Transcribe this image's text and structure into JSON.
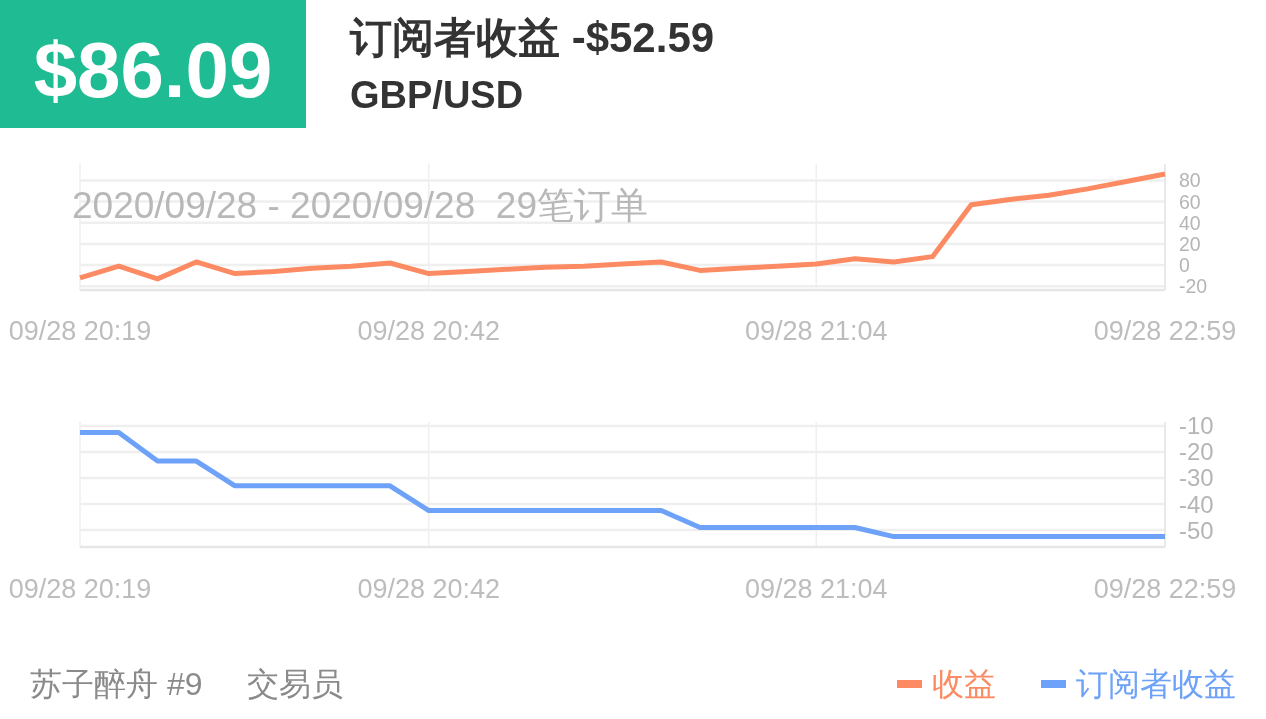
{
  "chart_data": [
    {
      "type": "line",
      "title": "订阅者收益 -$52.59",
      "subtitle": "GBP/USD",
      "annotations": [
        "$86.09",
        "2020/09/28 - 2020/09/28  29笔订单"
      ],
      "categories": [
        "09/28 20:19",
        null,
        null,
        null,
        null,
        null,
        null,
        null,
        null,
        "09/28 20:42",
        null,
        null,
        null,
        null,
        null,
        null,
        null,
        null,
        null,
        "09/28 21:04",
        null,
        null,
        null,
        null,
        null,
        null,
        null,
        null,
        "09/28 22:59"
      ],
      "ylim": [
        -23.5,
        95.5
      ],
      "yticks": [
        -20,
        0,
        20,
        40,
        60,
        80
      ],
      "grid": true,
      "legend": "bottom right",
      "series": [
        {
          "name": "收益",
          "color": "#fc8b63",
          "values": [
            -12,
            -1,
            -13,
            3,
            -8,
            -6,
            -3,
            -1,
            2,
            -8,
            -6,
            -4,
            -2,
            -1,
            1,
            3,
            -5,
            -3,
            -1,
            1,
            6,
            3,
            8,
            57,
            62,
            66,
            72,
            79,
            86
          ]
        }
      ]
    },
    {
      "type": "line",
      "annotations": [
        "苏子醉舟 #9     交易员"
      ],
      "categories": [
        "09/28 20:19",
        null,
        null,
        null,
        null,
        null,
        null,
        null,
        null,
        "09/28 20:42",
        null,
        null,
        null,
        null,
        null,
        null,
        null,
        null,
        null,
        "09/28 21:04",
        null,
        null,
        null,
        null,
        null,
        null,
        null,
        null,
        "09/28 22:59"
      ],
      "ylim": [
        -56.5,
        -8.5
      ],
      "yticks": [
        -50,
        -40,
        -30,
        -20,
        -10
      ],
      "grid": true,
      "legend": "bottom right",
      "series": [
        {
          "name": "订阅者收益",
          "color": "#6da2f8",
          "values": [
            -12.5,
            -12.5,
            -23.5,
            -23.5,
            -33,
            -33,
            -33,
            -33,
            -33,
            -42.5,
            -42.5,
            -42.5,
            -42.5,
            -42.5,
            -42.5,
            -42.5,
            -49,
            -49,
            -49,
            -49,
            -49,
            -52.5,
            -52.5,
            -52.5,
            -52.5,
            -52.5,
            -52.5,
            -52.5,
            -52.5
          ]
        }
      ]
    }
  ]
}
